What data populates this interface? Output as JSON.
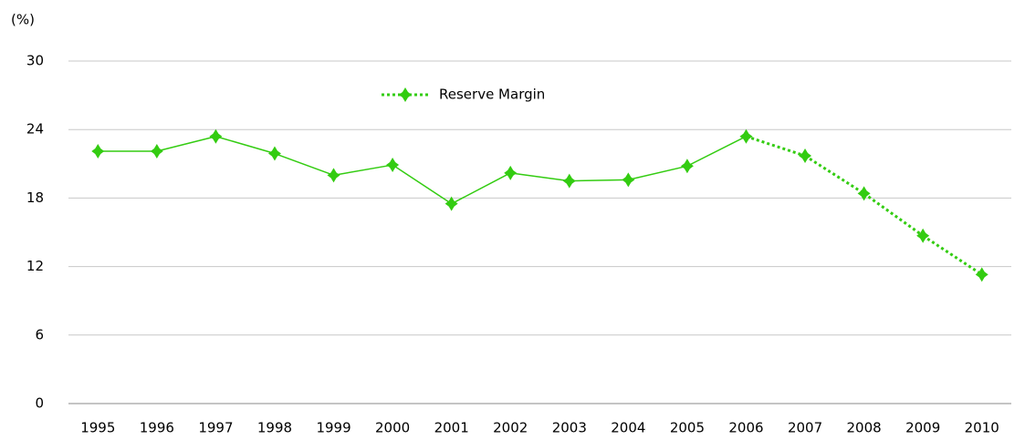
{
  "chart_data": {
    "type": "line",
    "y_unit": "(%)",
    "categories": [
      "1995",
      "1996",
      "1997",
      "1998",
      "1999",
      "2000",
      "2001",
      "2002",
      "2003",
      "2004",
      "2005",
      "2006",
      "2007",
      "2008",
      "2009",
      "2010"
    ],
    "series": [
      {
        "name": "Reserve Margin",
        "color": "#33cc11",
        "values": [
          22.1,
          22.1,
          23.4,
          21.9,
          20.0,
          20.9,
          17.5,
          20.2,
          19.5,
          19.6,
          20.8,
          23.4,
          21.7,
          18.4,
          14.7,
          11.3
        ],
        "dashed_from": "2006"
      }
    ],
    "ylim": [
      0,
      30
    ],
    "yticks": [
      0,
      6,
      12,
      18,
      24,
      30
    ],
    "grid": true,
    "legend": "top"
  }
}
